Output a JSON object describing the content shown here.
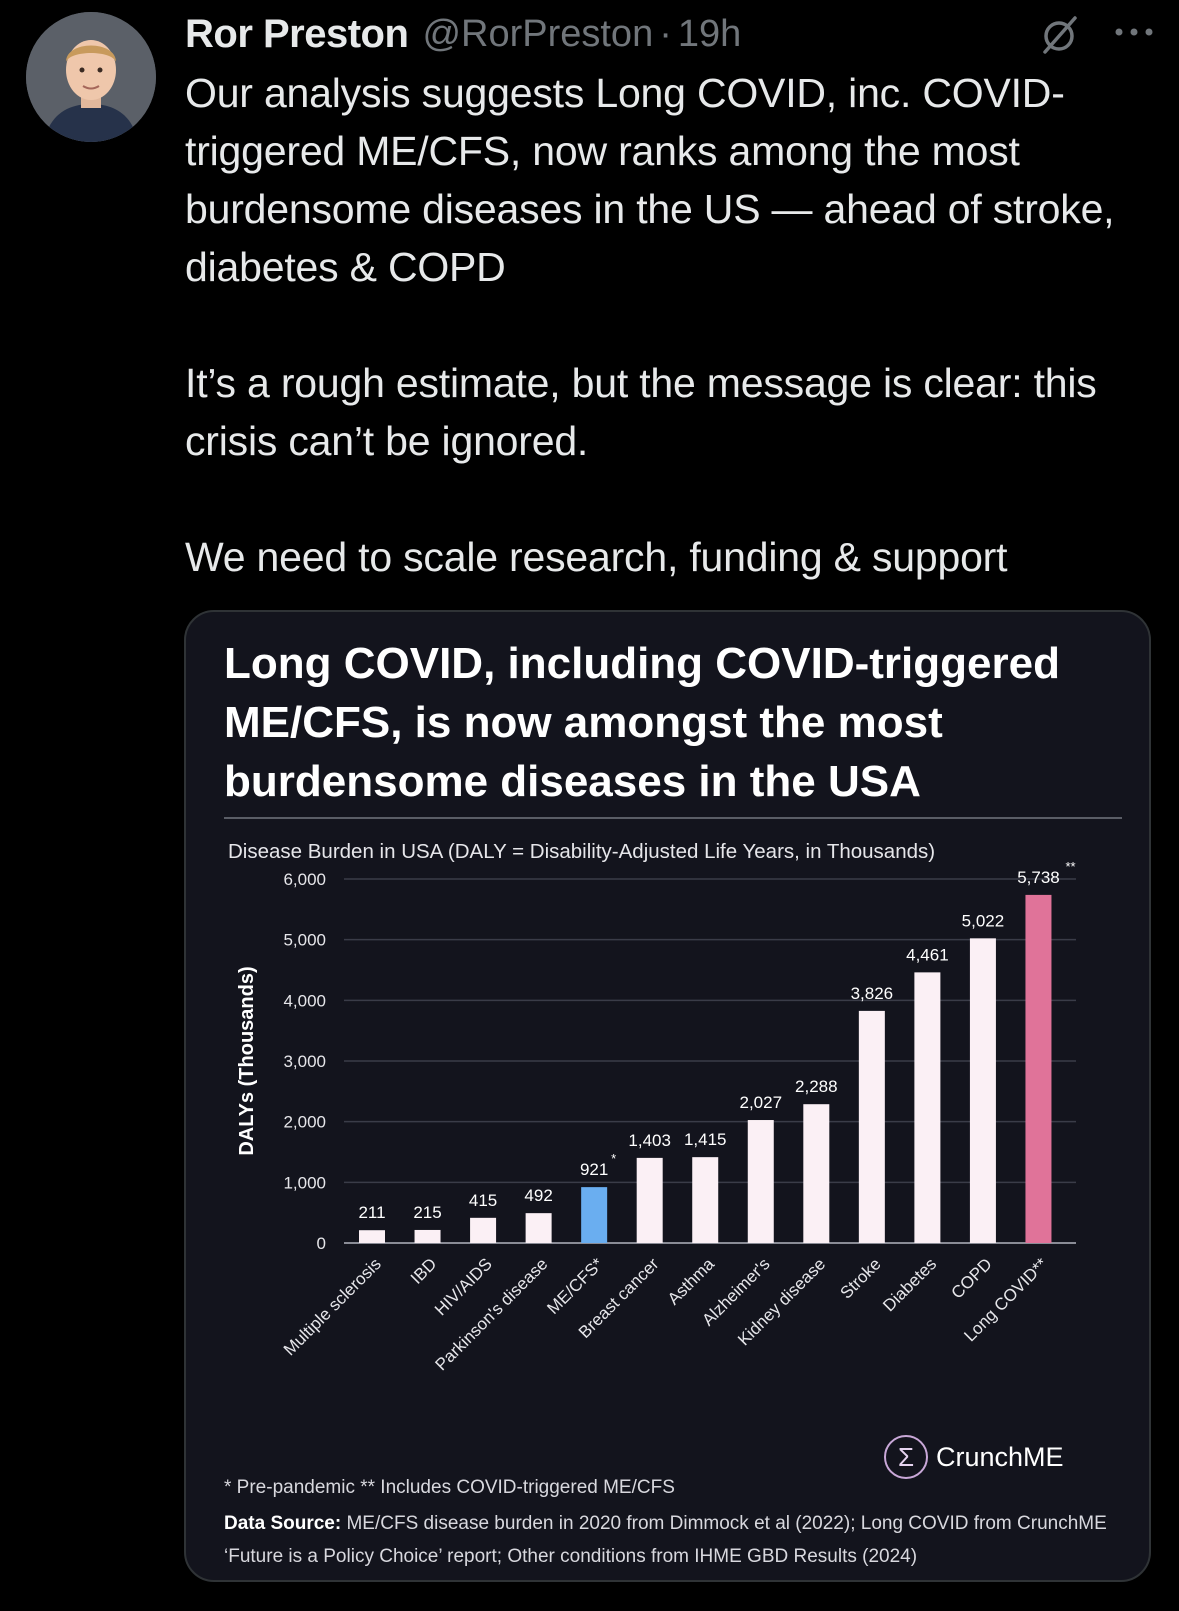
{
  "tweet": {
    "author_name": "Ror Preston",
    "handle": "@RorPreston",
    "separator": "·",
    "time": "19h",
    "paragraphs": [
      "Our analysis suggests Long COVID, inc. COVID-triggered ME/CFS, now ranks among the most burdensome diseases in the US — ahead of stroke, diabetes & COPD",
      "It’s a rough estimate, but the message is clear: this crisis can’t be ignored.",
      "We need to scale research, funding & support"
    ]
  },
  "icons": {
    "avatar": "avatar",
    "grok": "grok-icon",
    "more": "more-icon",
    "logo": "sigma-icon"
  },
  "card": {
    "title": "Long COVID, including COVID-triggered ME/CFS, is now amongst the most burdensome diseases in the USA",
    "subtitle": "Disease Burden in USA (DALY = Disability-Adjusted Life Years, in Thousands)",
    "footnote": "* Pre-pandemic ** Includes COVID-triggered ME/CFS",
    "source_label": "Data Source:",
    "source_text": "ME/CFS disease burden in 2020 from Dimmock et al (2022); Long COVID from CrunchME ‘Future is a Policy Choice’ report; Other conditions from IHME GBD Results (2024)",
    "logo_text": "CrunchME",
    "logo_symbol": "Σ"
  },
  "colors": {
    "background": "#000000",
    "card_bg": "#13141d",
    "bar_default": "#fbf0f5",
    "bar_mecfs": "#6aaef0",
    "bar_longcovid": "#e07399",
    "grid": "#3a3c48",
    "text_muted": "#71767b"
  },
  "chart_data": {
    "type": "bar",
    "title": "Disease Burden in USA (DALY = Disability-Adjusted Life Years, in Thousands)",
    "xlabel": "",
    "ylabel": "DALYs (Thousands)",
    "ylim": [
      0,
      6000
    ],
    "yticks": [
      0,
      1000,
      2000,
      3000,
      4000,
      5000,
      6000
    ],
    "ytick_labels": [
      "0",
      "1,000",
      "2,000",
      "3,000",
      "4,000",
      "5,000",
      "6,000"
    ],
    "grid": true,
    "categories": [
      "Multiple sclerosis",
      "IBD",
      "HIV/AIDS",
      "Parkinson's disease",
      "ME/CFS*",
      "Breast cancer",
      "Asthma",
      "Alzheimer's",
      "Kidney disease",
      "Stroke",
      "Diabetes",
      "COPD",
      "Long COVID**"
    ],
    "values": [
      211,
      215,
      415,
      492,
      921,
      1403,
      1415,
      2027,
      2288,
      3826,
      4461,
      5022,
      5738
    ],
    "value_labels": [
      "211",
      "215",
      "415",
      "492",
      "921",
      "1,403",
      "1,415",
      "2,027",
      "2,288",
      "3,826",
      "4,461",
      "5,022",
      "5,738"
    ],
    "label_marks": [
      "",
      "",
      "",
      "",
      "*",
      "",
      "",
      "",
      "",
      "",
      "",
      "",
      "**"
    ],
    "highlight": {
      "ME/CFS*": "#6aaef0",
      "Long COVID**": "#e07399"
    }
  }
}
